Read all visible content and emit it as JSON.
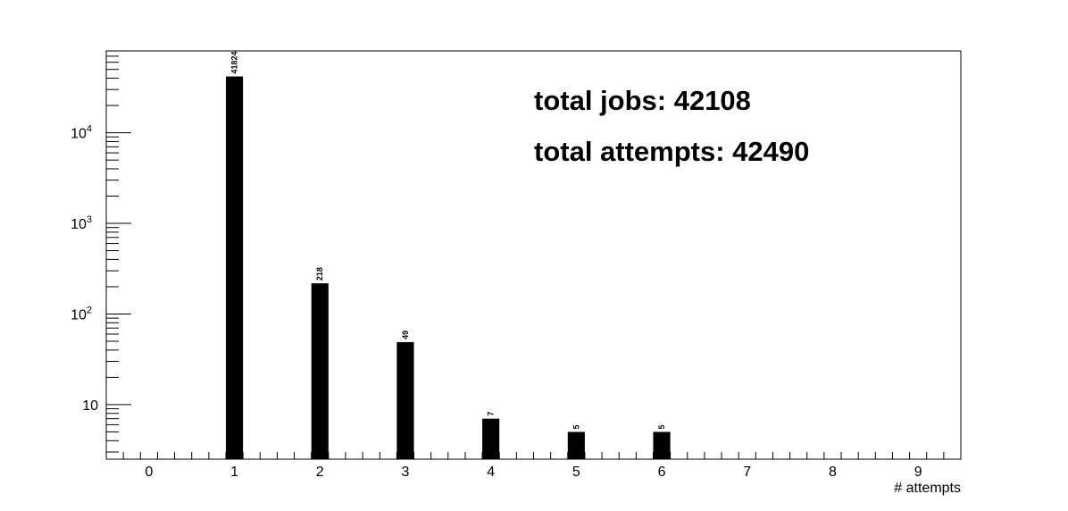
{
  "chart_data": {
    "type": "bar",
    "x_axis": {
      "label": "# attempts",
      "range": [
        -0.5,
        9.5
      ],
      "tick_values": [
        0,
        1,
        2,
        3,
        4,
        5,
        6,
        7,
        8,
        9
      ],
      "tick_labels": [
        "0",
        "1",
        "2",
        "3",
        "4",
        "5",
        "6",
        "7",
        "8",
        "9"
      ]
    },
    "y_axis": {
      "label": "",
      "scale": "log",
      "range": [
        2.5,
        80000
      ],
      "major_ticks": [
        {
          "value": 10,
          "base": "10",
          "exp": ""
        },
        {
          "value": 100,
          "base": "10",
          "exp": "2"
        },
        {
          "value": 1000,
          "base": "10",
          "exp": "3"
        },
        {
          "value": 10000,
          "base": "10",
          "exp": "4"
        }
      ]
    },
    "bars": [
      {
        "x": 1,
        "value": 41824,
        "label": "41824"
      },
      {
        "x": 2,
        "value": 218,
        "label": "218"
      },
      {
        "x": 3,
        "value": 49,
        "label": "49"
      },
      {
        "x": 4,
        "value": 7,
        "label": "7"
      },
      {
        "x": 5,
        "value": 5,
        "label": "5"
      },
      {
        "x": 6,
        "value": 5,
        "label": "5"
      }
    ],
    "annotations": [
      "total jobs: 42108",
      "total attempts: 42490"
    ],
    "bar_color": "#000000",
    "grid": false
  }
}
